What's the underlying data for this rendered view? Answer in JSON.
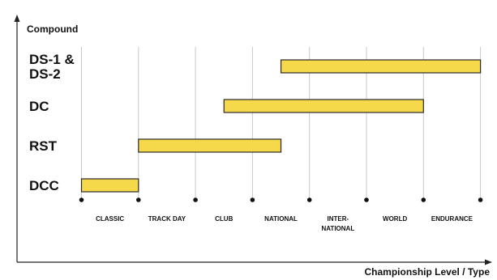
{
  "chart_data": {
    "type": "bar",
    "orientation": "horizontal-range",
    "ylabel": "Compound",
    "xlabel": "Championship Level / Type",
    "levels": [
      "CLASSIC",
      "TRACK DAY",
      "CLUB",
      "NATIONAL",
      "INTER-NATIONAL",
      "WORLD",
      "ENDURANCE"
    ],
    "series": [
      {
        "name": "DS-1 & DS-2",
        "start": 3.5,
        "end": 7
      },
      {
        "name": "DC",
        "start": 2.5,
        "end": 6
      },
      {
        "name": "RST",
        "start": 1,
        "end": 3.5
      },
      {
        "name": "DCC",
        "start": 0,
        "end": 1
      }
    ],
    "grid": true,
    "colors": {
      "bar": "#f6d94b",
      "bar_stroke": "#2a2a2a",
      "grid": "#c8c8c8",
      "axis": "#222222"
    }
  }
}
